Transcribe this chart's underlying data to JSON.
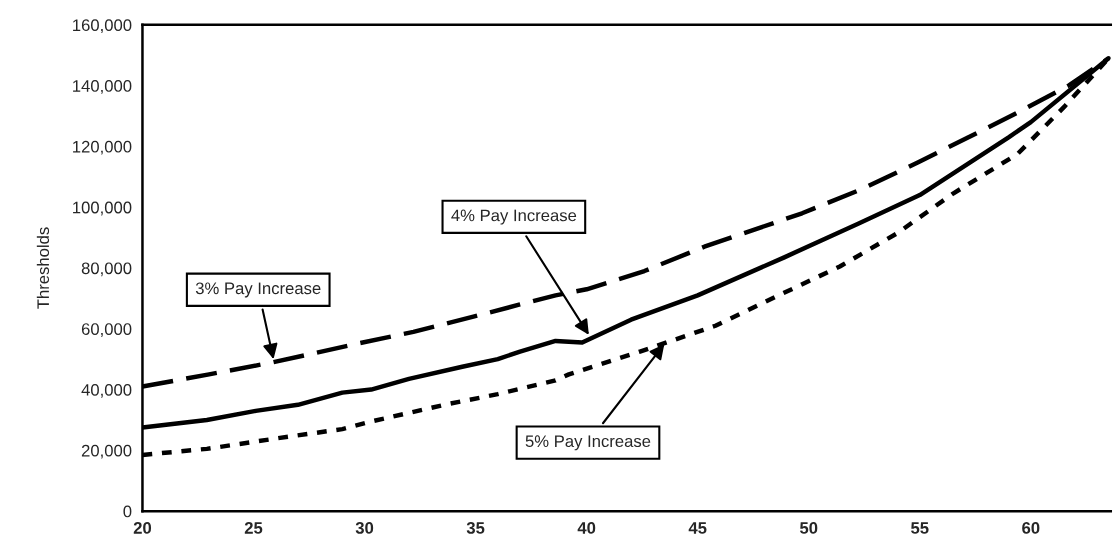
{
  "chart_data": {
    "type": "line",
    "ylabel": "Thresholds",
    "xlim": [
      20,
      63.6
    ],
    "xticks": [
      20,
      25,
      30,
      35,
      40,
      45,
      50,
      55,
      60
    ],
    "ylim": [
      0,
      160000
    ],
    "yticks": [
      0,
      {
        "value": 20000,
        "label": "20,000"
      },
      {
        "value": 40000,
        "label": "40,000"
      },
      {
        "value": 60000,
        "label": "60,000"
      },
      {
        "value": 80000,
        "label": "80,000"
      },
      {
        "value": 100000,
        "label": "100,000"
      },
      {
        "value": 120000,
        "label": "120,000"
      },
      {
        "value": 140000,
        "label": "140,000"
      },
      {
        "value": 160000,
        "label": "160,000"
      }
    ],
    "grid": false,
    "series": [
      {
        "color": "#000000",
        "line_style": "dashed",
        "x": [
          20,
          23,
          25.9,
          29.6,
          32.2,
          34.9,
          37,
          38.6,
          40,
          42.6,
          45.3,
          49.7,
          52.4,
          55,
          59.1,
          61.7,
          63.5
        ],
        "values": [
          41000,
          45000,
          49000,
          55000,
          59000,
          64000,
          68000,
          71000,
          73000,
          79000,
          87000,
          98000,
          106000,
          115000,
          130000,
          140000,
          149000
        ]
      },
      {
        "color": "#000000",
        "line_style": "solid",
        "x": [
          20,
          22.9,
          25.1,
          27,
          29,
          30.3,
          32,
          34.4,
          36,
          37,
          38.6,
          39.8,
          42,
          45,
          48.9,
          52.2,
          55,
          59,
          60,
          63.5
        ],
        "values": [
          27500,
          30000,
          33000,
          35000,
          39000,
          40000,
          43500,
          47500,
          50000,
          52500,
          56000,
          55500,
          63000,
          71000,
          83500,
          94500,
          104000,
          123000,
          128000,
          149000
        ]
      },
      {
        "color": "#000000",
        "line_style": "dotted",
        "x": [
          20,
          22.9,
          26.1,
          29,
          30.3,
          33.6,
          36,
          38.6,
          39.2,
          42.4,
          45.8,
          48.5,
          51.4,
          54,
          56.5,
          59.4,
          61.5,
          63.5
        ],
        "values": [
          18500,
          20500,
          24000,
          27000,
          29500,
          35000,
          38500,
          43000,
          45000,
          52500,
          61000,
          70500,
          80500,
          91500,
          104500,
          117500,
          133000,
          149000
        ]
      }
    ],
    "annotations": [
      {
        "text": "3% Pay Increase",
        "x": 25.9,
        "y": 50000
      },
      {
        "text": "4% Pay Increase",
        "x": 40.1,
        "y": 58000
      },
      {
        "text": "5% Pay Increase",
        "x": 43.5,
        "y": 55000
      }
    ]
  }
}
